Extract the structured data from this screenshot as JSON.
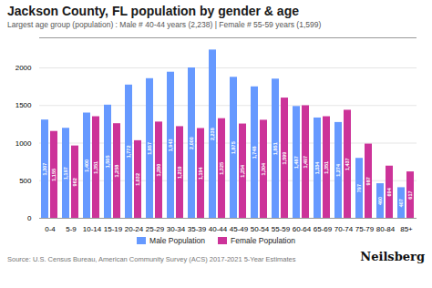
{
  "chart_data": {
    "type": "bar",
    "title": "Jackson County, FL population by gender & age",
    "subtitle": "Largest age group (population) : Male # 40-44 years (2,238) | Female # 55-59 years (1,599)",
    "caption": "Source: U.S. Census Bureau, American Community Survey (ACS) 2017-2021 5-Year Estimates",
    "annotations": [
      "Neilsberg"
    ],
    "categories": [
      "0-4",
      "5-9",
      "10-14",
      "15-19",
      "20-24",
      "25-29",
      "30-34",
      "35-39",
      "40-44",
      "45-49",
      "50-54",
      "55-59",
      "60-64",
      "65-69",
      "70-74",
      "75-79",
      "80-84",
      "85+"
    ],
    "series": [
      {
        "name": "Male Population",
        "color": "#6699ff",
        "values": [
          1307,
          1197,
          1400,
          1505,
          1772,
          1857,
          1943,
          2000,
          2238,
          1875,
          1748,
          1851,
          1487,
          1334,
          1274,
          797,
          460,
          407
        ],
        "value_labels": [
          "1,307",
          "1,197",
          "1,400",
          "1,505",
          "1,772",
          "1,857",
          "1,943",
          "2,000",
          "2,238",
          "1,875",
          "1,748",
          "1,851",
          "1,487",
          "1,334",
          "1,274",
          "797",
          "460",
          "407"
        ]
      },
      {
        "name": "Female Population",
        "color": "#cc3399",
        "values": [
          1155,
          962,
          1351,
          1258,
          1032,
          1280,
          1219,
          1194,
          1325,
          1254,
          1304,
          1599,
          1497,
          1351,
          1437,
          987,
          694,
          617
        ],
        "value_labels": [
          "1,155",
          "962",
          "1,351",
          "1,258",
          "1,032",
          "1,280",
          "1,219",
          "1,194",
          "1,325",
          "1,254",
          "1,304",
          "1,599",
          "1,497",
          "1,351",
          "1,437",
          "987",
          "694",
          "617"
        ]
      }
    ],
    "ylim": [
      0,
      2400
    ],
    "yticks": [
      0,
      500,
      1000,
      1500,
      2000
    ],
    "grid": true,
    "legend": "bottom",
    "data_labels": true
  }
}
